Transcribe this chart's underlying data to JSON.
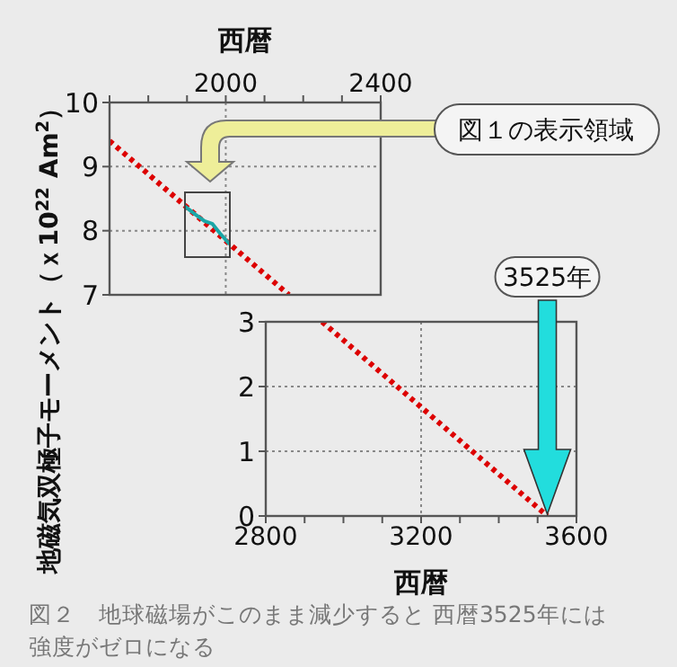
{
  "chart_data": [
    {
      "type": "line",
      "xlabel": "西暦",
      "ylabel": "地磁気双極子モーメント（ｘ10$^{22}$ Am$^{2}$）",
      "xlim": [
        1700,
        2400
      ],
      "xticks": [
        {
          "value": 1700,
          "label": null
        },
        {
          "value": 1800,
          "label": null
        },
        {
          "value": 1900,
          "label": null
        },
        2000,
        {
          "value": 2100,
          "label": null
        },
        {
          "value": 2200,
          "label": null
        },
        {
          "value": 2300,
          "label": null
        },
        2400
      ],
      "ylim": [
        7,
        10
      ],
      "yticks": [
        7,
        8,
        9,
        10
      ],
      "grid": true,
      "annotations": [
        "図１の表示領域"
      ],
      "series": [
        {
          "color": "#dd0000",
          "line_style": "dotted",
          "x": [
            1700,
            2163
          ],
          "values": [
            9.4,
            7.0
          ]
        },
        {
          "color": "#1aa6a6",
          "line_style": "solid",
          "x": [
            1895,
            1920,
            1945,
            1965,
            1985,
            2010
          ],
          "values": [
            8.38,
            8.26,
            8.15,
            8.11,
            7.96,
            7.79
          ]
        }
      ]
    },
    {
      "type": "line",
      "xlabel": "西暦",
      "xlim": [
        2800,
        3600
      ],
      "xticks": [
        2800,
        {
          "value": 2900,
          "label": null
        },
        {
          "value": 3000,
          "label": null
        },
        {
          "value": 3100,
          "label": null
        },
        3200,
        {
          "value": 3300,
          "label": null
        },
        {
          "value": 3400,
          "label": null
        },
        {
          "value": 3500,
          "label": null
        },
        3600
      ],
      "ylim": [
        0,
        3
      ],
      "yticks": [
        0,
        1,
        2,
        3
      ],
      "grid": true,
      "annotations": [
        "3525年",
        "図２　地球磁場がこのまま減少すると 西暦3525年には強度がゼロになる"
      ],
      "series": [
        {
          "color": "#dd0000",
          "line_style": "dotted",
          "x": [
            2945,
            3525
          ],
          "values": [
            3,
            0
          ]
        }
      ]
    }
  ]
}
